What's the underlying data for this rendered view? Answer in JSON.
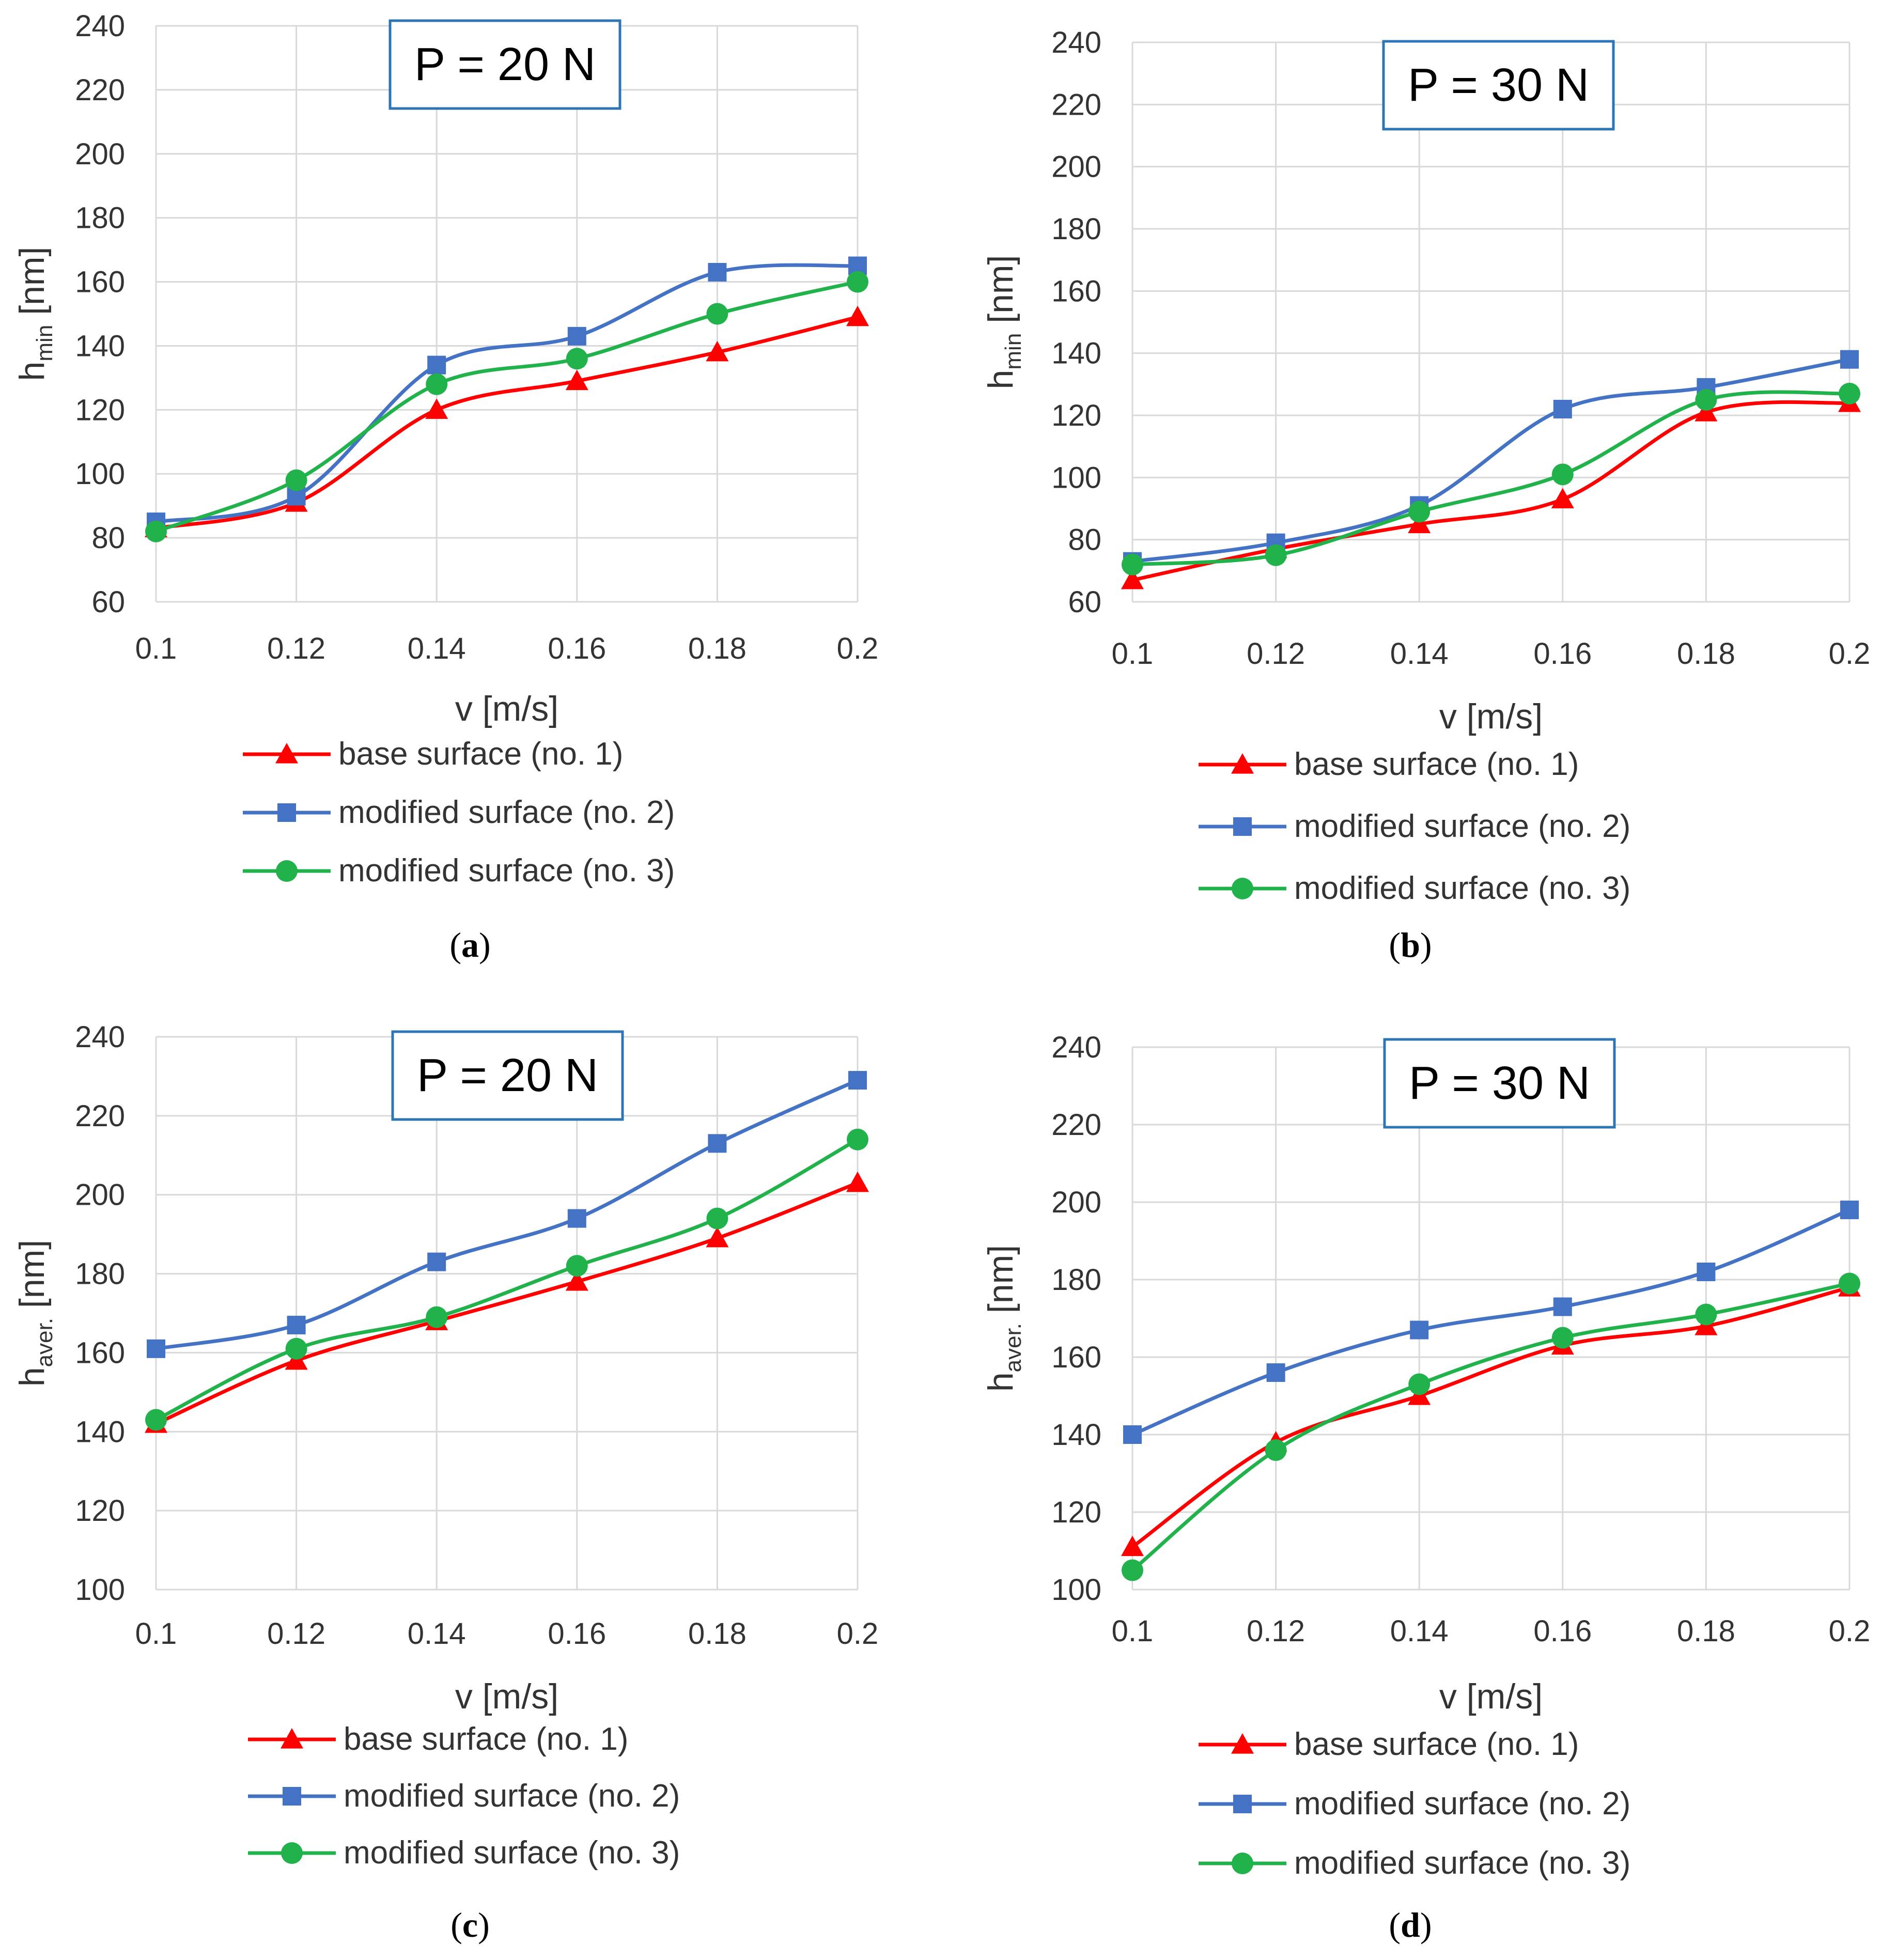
{
  "legend_labels": [
    "base surface (no. 1)",
    "modified surface (no. 2)",
    "modified surface (no. 3)"
  ],
  "series_colors": [
    "#FF0000",
    "#4472C4",
    "#21B24B"
  ],
  "series_markers": [
    "triangle",
    "square",
    "circle"
  ],
  "captions": [
    "a",
    "b",
    "c",
    "d"
  ],
  "chart_data": [
    {
      "type": "line",
      "title": "P = 20 N",
      "xlabel": "v [m/s]",
      "ylabel_main": "h",
      "ylabel_sub": "min",
      "ylabel_unit": " [nm]",
      "x": [
        0.1,
        0.12,
        0.14,
        0.16,
        0.18,
        0.2
      ],
      "x_ticks": [
        "0.1",
        "0.12",
        "0.14",
        "0.16",
        "0.18",
        "0.2"
      ],
      "ylim": [
        60,
        240
      ],
      "y_ticks": [
        60,
        80,
        100,
        120,
        140,
        160,
        180,
        200,
        220,
        240
      ],
      "grid": true,
      "legend_position": "bottom",
      "series": [
        {
          "name": "base surface (no. 1)",
          "values": [
            83,
            91,
            120,
            129,
            138,
            149
          ]
        },
        {
          "name": "modified surface (no. 2)",
          "values": [
            85,
            93,
            134,
            143,
            163,
            165
          ]
        },
        {
          "name": "modified surface (no. 3)",
          "values": [
            82,
            98,
            128,
            136,
            150,
            160
          ]
        }
      ]
    },
    {
      "type": "line",
      "title": "P = 30 N",
      "xlabel": "v [m/s]",
      "ylabel_main": "h",
      "ylabel_sub": "min",
      "ylabel_unit": " [nm]",
      "x": [
        0.1,
        0.12,
        0.14,
        0.16,
        0.18,
        0.2
      ],
      "x_ticks": [
        "0.1",
        "0.12",
        "0.14",
        "0.16",
        "0.18",
        "0.2"
      ],
      "ylim": [
        60,
        240
      ],
      "y_ticks": [
        60,
        80,
        100,
        120,
        140,
        160,
        180,
        200,
        220,
        240
      ],
      "grid": true,
      "legend_position": "bottom",
      "series": [
        {
          "name": "base surface (no. 1)",
          "values": [
            67,
            77,
            85,
            93,
            121,
            124
          ]
        },
        {
          "name": "modified surface (no. 2)",
          "values": [
            73,
            79,
            91,
            122,
            129,
            138
          ]
        },
        {
          "name": "modified surface (no. 3)",
          "values": [
            72,
            75,
            89,
            101,
            125,
            127
          ]
        }
      ]
    },
    {
      "type": "line",
      "title": "P = 20 N",
      "xlabel": "v [m/s]",
      "ylabel_main": "h",
      "ylabel_sub": "aver.",
      "ylabel_unit": " [nm]",
      "x": [
        0.1,
        0.12,
        0.14,
        0.16,
        0.18,
        0.2
      ],
      "x_ticks": [
        "0.1",
        "0.12",
        "0.14",
        "0.16",
        "0.18",
        "0.2"
      ],
      "ylim": [
        100,
        240
      ],
      "y_ticks": [
        100,
        120,
        140,
        160,
        180,
        200,
        220,
        240
      ],
      "grid": true,
      "legend_position": "bottom",
      "series": [
        {
          "name": "base surface (no. 1)",
          "values": [
            142,
            158,
            168,
            178,
            189,
            203
          ]
        },
        {
          "name": "modified surface (no. 2)",
          "values": [
            161,
            167,
            183,
            194,
            213,
            229
          ]
        },
        {
          "name": "modified surface (no. 3)",
          "values": [
            143,
            161,
            169,
            182,
            194,
            214
          ]
        }
      ]
    },
    {
      "type": "line",
      "title": "P = 30 N",
      "xlabel": "v [m/s]",
      "ylabel_main": "h",
      "ylabel_sub": "aver.",
      "ylabel_unit": " [nm]",
      "x": [
        0.1,
        0.12,
        0.14,
        0.16,
        0.18,
        0.2
      ],
      "x_ticks": [
        "0.1",
        "0.12",
        "0.14",
        "0.16",
        "0.18",
        "0.2"
      ],
      "ylim": [
        100,
        240
      ],
      "y_ticks": [
        100,
        120,
        140,
        160,
        180,
        200,
        220,
        240
      ],
      "grid": true,
      "legend_position": "bottom",
      "series": [
        {
          "name": "base surface (no. 1)",
          "values": [
            111,
            138,
            150,
            163,
            168,
            178
          ]
        },
        {
          "name": "modified surface (no. 2)",
          "values": [
            140,
            156,
            167,
            173,
            182,
            198
          ]
        },
        {
          "name": "modified surface (no. 3)",
          "values": [
            105,
            136,
            153,
            165,
            171,
            179
          ]
        }
      ]
    }
  ]
}
